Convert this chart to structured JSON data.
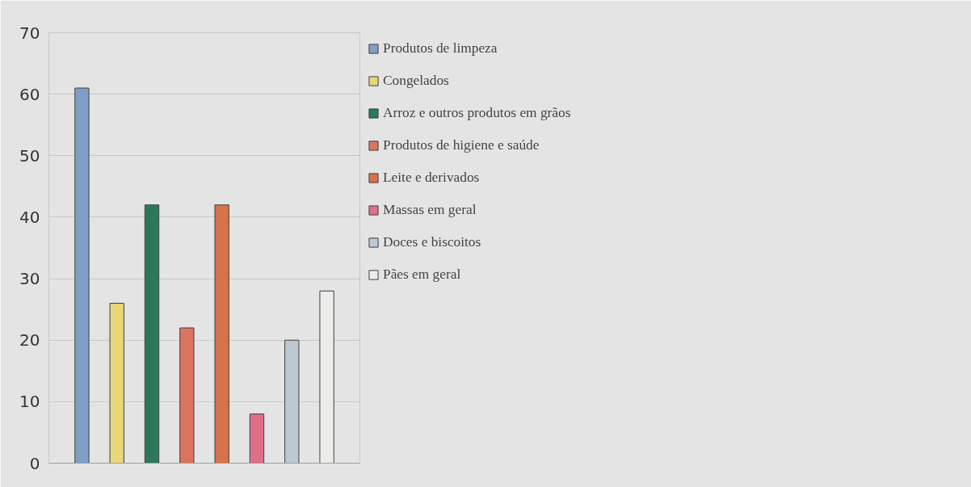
{
  "chart_data": {
    "type": "bar",
    "categories": [
      null
    ],
    "series": [
      {
        "name": "Produtos de limpeza",
        "color": "#7f9fc6",
        "values": [
          61
        ]
      },
      {
        "name": "Congelados",
        "color": "#e6d878",
        "values": [
          26
        ]
      },
      {
        "name": "Arroz e outros produtos em grãos",
        "color": "#2a7a5a",
        "values": [
          42
        ]
      },
      {
        "name": "Produtos de higiene e saúde",
        "color": "#dc7462",
        "values": [
          22
        ]
      },
      {
        "name": "Leite e derivados",
        "color": "#d8724a",
        "values": [
          42
        ]
      },
      {
        "name": "Massas em geral",
        "color": "#de6f88",
        "values": [
          8
        ]
      },
      {
        "name": "Doces e biscoitos",
        "color": "#bcc8d2",
        "values": [
          20
        ]
      },
      {
        "name": "Pães em geral",
        "color": "#ececea",
        "values": [
          28
        ]
      }
    ],
    "ylim": [
      0,
      70
    ],
    "yticks": [
      0,
      10,
      20,
      30,
      40,
      50,
      60,
      70
    ],
    "grid": "y",
    "legend": "right"
  }
}
